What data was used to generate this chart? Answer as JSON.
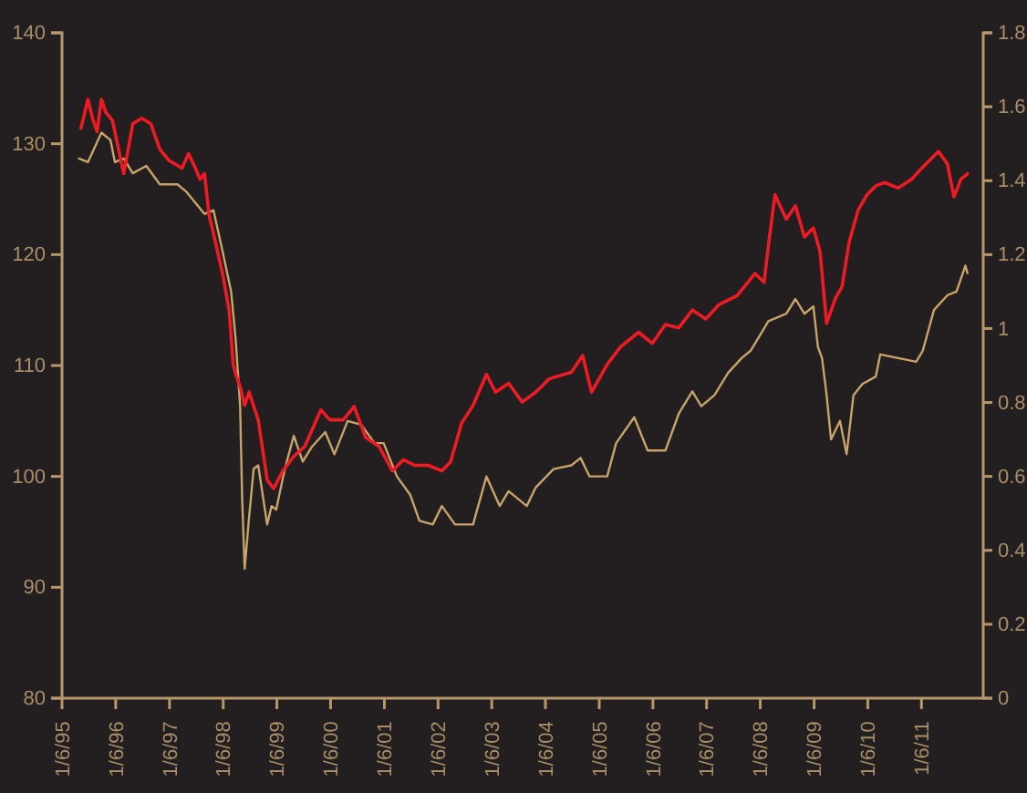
{
  "chart_data": {
    "type": "line",
    "xlim": [
      "1995-01-06",
      "2012-03-01"
    ],
    "xticks": [
      {
        "value": "1995-01-06",
        "label": "1/6/95"
      },
      {
        "value": "1996-01-06",
        "label": "1/6/96"
      },
      {
        "value": "1997-01-06",
        "label": "1/6/97"
      },
      {
        "value": "1998-01-06",
        "label": "1/6/98"
      },
      {
        "value": "1999-01-06",
        "label": "1/6/99"
      },
      {
        "value": "2000-01-06",
        "label": "1/6/00"
      },
      {
        "value": "2001-01-06",
        "label": "1/6/01"
      },
      {
        "value": "2002-01-06",
        "label": "1/6/02"
      },
      {
        "value": "2003-01-06",
        "label": "1/6/03"
      },
      {
        "value": "2004-01-06",
        "label": "1/6/04"
      },
      {
        "value": "2005-01-06",
        "label": "1/6/05"
      },
      {
        "value": "2006-01-06",
        "label": "1/6/06"
      },
      {
        "value": "2007-01-06",
        "label": "1/6/07"
      },
      {
        "value": "2008-01-06",
        "label": "1/6/08"
      },
      {
        "value": "2009-01-06",
        "label": "1/6/09"
      },
      {
        "value": "2010-01-06",
        "label": "1/6/10"
      },
      {
        "value": "2011-01-06",
        "label": "1/6/11"
      }
    ],
    "ylim": [
      80,
      140
    ],
    "yticks": [
      80,
      90,
      100,
      110,
      120,
      130,
      140
    ],
    "y2lim": [
      0,
      1.8
    ],
    "y2ticks": [
      0,
      0.2,
      0.4,
      0.6,
      0.8,
      1.0,
      1.2,
      1.4,
      1.6,
      1.8
    ],
    "series": [
      {
        "color": "#c9a46a",
        "axis": "y2",
        "x": [
          "1995-05-01",
          "1995-07-01",
          "1995-10-01",
          "1995-12-01",
          "1996-01-01",
          "1996-03-01",
          "1996-05-01",
          "1996-08-01",
          "1996-11-01",
          "1997-03-01",
          "1997-05-01",
          "1997-07-01",
          "1997-09-01",
          "1997-11-01",
          "1998-01-01",
          "1998-03-01",
          "1998-04-01",
          "1998-05-01",
          "1998-05-15",
          "1998-06-01",
          "1998-07-01",
          "1998-08-01",
          "1998-09-01",
          "1998-11-01",
          "1998-12-01",
          "1999-01-01",
          "1999-03-01",
          "1999-05-01",
          "1999-07-01",
          "1999-09-01",
          "1999-12-01",
          "2000-02-01",
          "2000-05-01",
          "2000-08-01",
          "2000-11-01",
          "2001-01-01",
          "2001-04-01",
          "2001-07-01",
          "2001-09-01",
          "2001-12-01",
          "2002-02-01",
          "2002-05-01",
          "2002-09-01",
          "2002-12-01",
          "2003-03-01",
          "2003-05-01",
          "2003-09-01",
          "2003-11-01",
          "2004-03-01",
          "2004-07-01",
          "2004-09-01",
          "2004-11-01",
          "2005-03-01",
          "2005-05-01",
          "2005-09-01",
          "2005-12-01",
          "2006-04-01",
          "2006-07-01",
          "2006-10-01",
          "2006-12-01",
          "2007-03-01",
          "2007-06-01",
          "2007-09-01",
          "2007-11-01",
          "2008-01-01",
          "2008-03-01",
          "2008-07-01",
          "2008-09-01",
          "2008-11-01",
          "2009-01-01",
          "2009-02-01",
          "2009-03-01",
          "2009-04-01",
          "2009-05-01",
          "2009-07-01",
          "2009-08-15",
          "2009-10-01",
          "2009-12-01",
          "2010-03-01",
          "2010-04-01",
          "2010-08-01",
          "2010-12-01",
          "2011-01-15",
          "2011-04-01",
          "2011-07-01",
          "2011-09-01",
          "2011-11-01",
          "2011-11-15"
        ],
        "values": [
          1.46,
          1.45,
          1.53,
          1.51,
          1.45,
          1.46,
          1.42,
          1.44,
          1.39,
          1.39,
          1.37,
          1.34,
          1.31,
          1.32,
          1.21,
          1.1,
          0.97,
          0.79,
          0.54,
          0.35,
          0.49,
          0.62,
          0.63,
          0.47,
          0.52,
          0.51,
          0.62,
          0.71,
          0.64,
          0.68,
          0.72,
          0.66,
          0.75,
          0.74,
          0.69,
          0.69,
          0.6,
          0.55,
          0.48,
          0.47,
          0.52,
          0.47,
          0.47,
          0.6,
          0.52,
          0.56,
          0.52,
          0.57,
          0.62,
          0.63,
          0.65,
          0.6,
          0.6,
          0.69,
          0.76,
          0.67,
          0.67,
          0.77,
          0.83,
          0.79,
          0.82,
          0.88,
          0.92,
          0.94,
          0.98,
          1.02,
          1.04,
          1.08,
          1.04,
          1.06,
          0.95,
          0.92,
          0.82,
          0.7,
          0.75,
          0.66,
          0.82,
          0.85,
          0.87,
          0.93,
          0.92,
          0.91,
          0.94,
          1.05,
          1.09,
          1.1,
          1.17,
          1.15
        ]
      },
      {
        "color": "#ed1c24",
        "x": [
          "1995-05-15",
          "1995-07-01",
          "1995-08-01",
          "1995-09-01",
          "1995-10-01",
          "1995-11-01",
          "1995-12-15",
          "1996-03-01",
          "1996-05-01",
          "1996-07-01",
          "1996-09-01",
          "1996-11-01",
          "1997-01-01",
          "1997-04-01",
          "1997-05-15",
          "1997-07-01",
          "1997-08-01",
          "1997-09-01",
          "1997-10-01",
          "1997-11-01",
          "1998-01-01",
          "1998-02-15",
          "1998-03-15",
          "1998-04-01",
          "1998-05-01",
          "1998-06-01",
          "1998-07-01",
          "1998-09-01",
          "1998-11-01",
          "1998-12-15",
          "1999-02-15",
          "1999-05-01",
          "1999-07-15",
          "1999-11-01",
          "2000-01-01",
          "2000-04-01",
          "2000-06-15",
          "2000-09-01",
          "2000-12-01",
          "2001-03-01",
          "2001-05-15",
          "2001-08-01",
          "2001-11-01",
          "2002-02-01",
          "2002-04-01",
          "2002-06-15",
          "2002-09-01",
          "2002-12-01",
          "2003-02-01",
          "2003-05-01",
          "2003-08-01",
          "2003-11-01",
          "2004-02-01",
          "2004-07-01",
          "2004-09-15",
          "2004-11-15",
          "2005-03-01",
          "2005-06-01",
          "2005-10-01",
          "2006-01-01",
          "2006-04-01",
          "2006-07-01",
          "2006-10-01",
          "2007-01-01",
          "2007-04-01",
          "2007-08-01",
          "2007-12-01",
          "2008-02-01",
          "2008-03-01",
          "2008-04-15",
          "2008-07-01",
          "2008-09-01",
          "2008-11-01",
          "2009-01-01",
          "2009-02-15",
          "2009-04-01",
          "2009-06-01",
          "2009-07-15",
          "2009-09-01",
          "2009-11-01",
          "2010-01-01",
          "2010-03-01",
          "2010-05-01",
          "2010-08-01",
          "2010-11-01",
          "2011-01-01",
          "2011-05-01",
          "2011-07-01",
          "2011-08-15",
          "2011-10-01",
          "2011-11-15"
        ],
        "values": [
          131.4,
          134.0,
          132.3,
          131.1,
          134.0,
          132.8,
          132.1,
          127.3,
          131.8,
          132.3,
          131.8,
          129.5,
          128.5,
          127.8,
          129.1,
          127.8,
          126.8,
          127.3,
          123.6,
          121.9,
          118.3,
          115.0,
          110.1,
          109.2,
          108.1,
          106.4,
          107.6,
          105.1,
          99.7,
          98.9,
          100.5,
          101.8,
          102.7,
          106.0,
          105.1,
          105.1,
          106.3,
          103.5,
          102.7,
          100.5,
          101.5,
          101.0,
          101.0,
          100.5,
          101.3,
          104.8,
          106.4,
          109.2,
          107.6,
          108.4,
          106.7,
          107.6,
          108.8,
          109.4,
          110.9,
          107.6,
          110.1,
          111.7,
          113.0,
          112.0,
          113.7,
          113.4,
          115.0,
          114.2,
          115.5,
          116.3,
          118.3,
          117.5,
          120.8,
          125.4,
          123.2,
          124.4,
          121.6,
          122.4,
          120.3,
          113.8,
          116.1,
          117.1,
          121.1,
          124.0,
          125.4,
          126.2,
          126.5,
          126.0,
          126.8,
          127.7,
          129.3,
          128.2,
          125.2,
          126.8,
          127.3
        ]
      }
    ]
  }
}
